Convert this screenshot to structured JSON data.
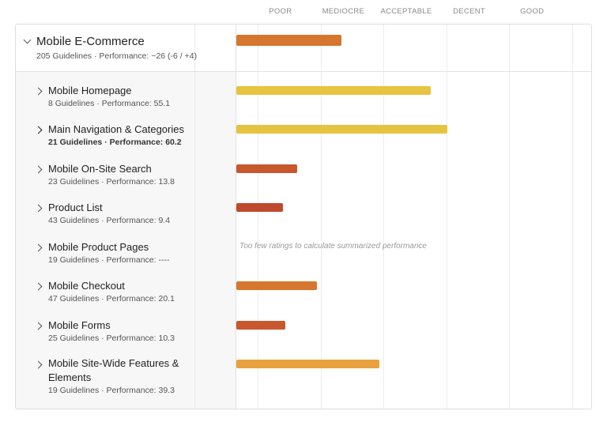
{
  "scale": {
    "labels": [
      "POOR",
      "MEDIOCRE",
      "ACCEPTABLE",
      "DECENT",
      "GOOD"
    ],
    "colors": {
      "orange": "#d5772e",
      "yellow": "#e6c340",
      "red_orange": "#c8572e",
      "red": "#bd4a2c",
      "light_orange": "#e8a13e"
    }
  },
  "chart_data": {
    "type": "bar",
    "orientation": "horizontal",
    "xlim": [
      -50,
      100
    ],
    "tick_labels": [
      "POOR",
      "MEDIOCRE",
      "ACCEPTABLE",
      "DECENT",
      "GOOD"
    ],
    "grid": true,
    "parent": {
      "title": "Mobile E-Commerce",
      "meta": "205 Guidelines · Performance: ~26 (-6 / +4)",
      "value": 26,
      "color": "#d5772e",
      "expanded": true
    },
    "categories": [
      {
        "title": "Mobile Homepage",
        "meta": "8 Guidelines · Performance: 55.1",
        "value": 55.1,
        "color": "#e6c340",
        "emphasized": false
      },
      {
        "title": "Main Navigation & Categories",
        "meta": "21 Guidelines · Performance: 60.2",
        "value": 60.2,
        "color": "#e6c340",
        "emphasized": true
      },
      {
        "title": "Mobile On-Site Search",
        "meta": "23 Guidelines · Performance: 13.8",
        "value": 13.8,
        "color": "#c8572e",
        "emphasized": false
      },
      {
        "title": "Product List",
        "meta": "43 Guidelines · Performance: 9.4",
        "value": 9.4,
        "color": "#bd4a2c",
        "emphasized": false
      },
      {
        "title": "Mobile Product Pages",
        "meta": "19 Guidelines · Performance: ----",
        "value": null,
        "note": "Too few ratings to calculate summarized performance",
        "emphasized": false
      },
      {
        "title": "Mobile Checkout",
        "meta": "47 Guidelines · Performance: 20.1",
        "value": 20.1,
        "color": "#d5772e",
        "emphasized": false
      },
      {
        "title": "Mobile Forms",
        "meta": "25 Guidelines · Performance: 10.3",
        "value": 10.3,
        "color": "#c8572e",
        "emphasized": false
      },
      {
        "title": "Mobile Site-Wide Features & Elements",
        "meta": "19 Guidelines · Performance: 39.3",
        "value": 39.3,
        "color": "#e8a13e",
        "emphasized": false
      }
    ]
  }
}
